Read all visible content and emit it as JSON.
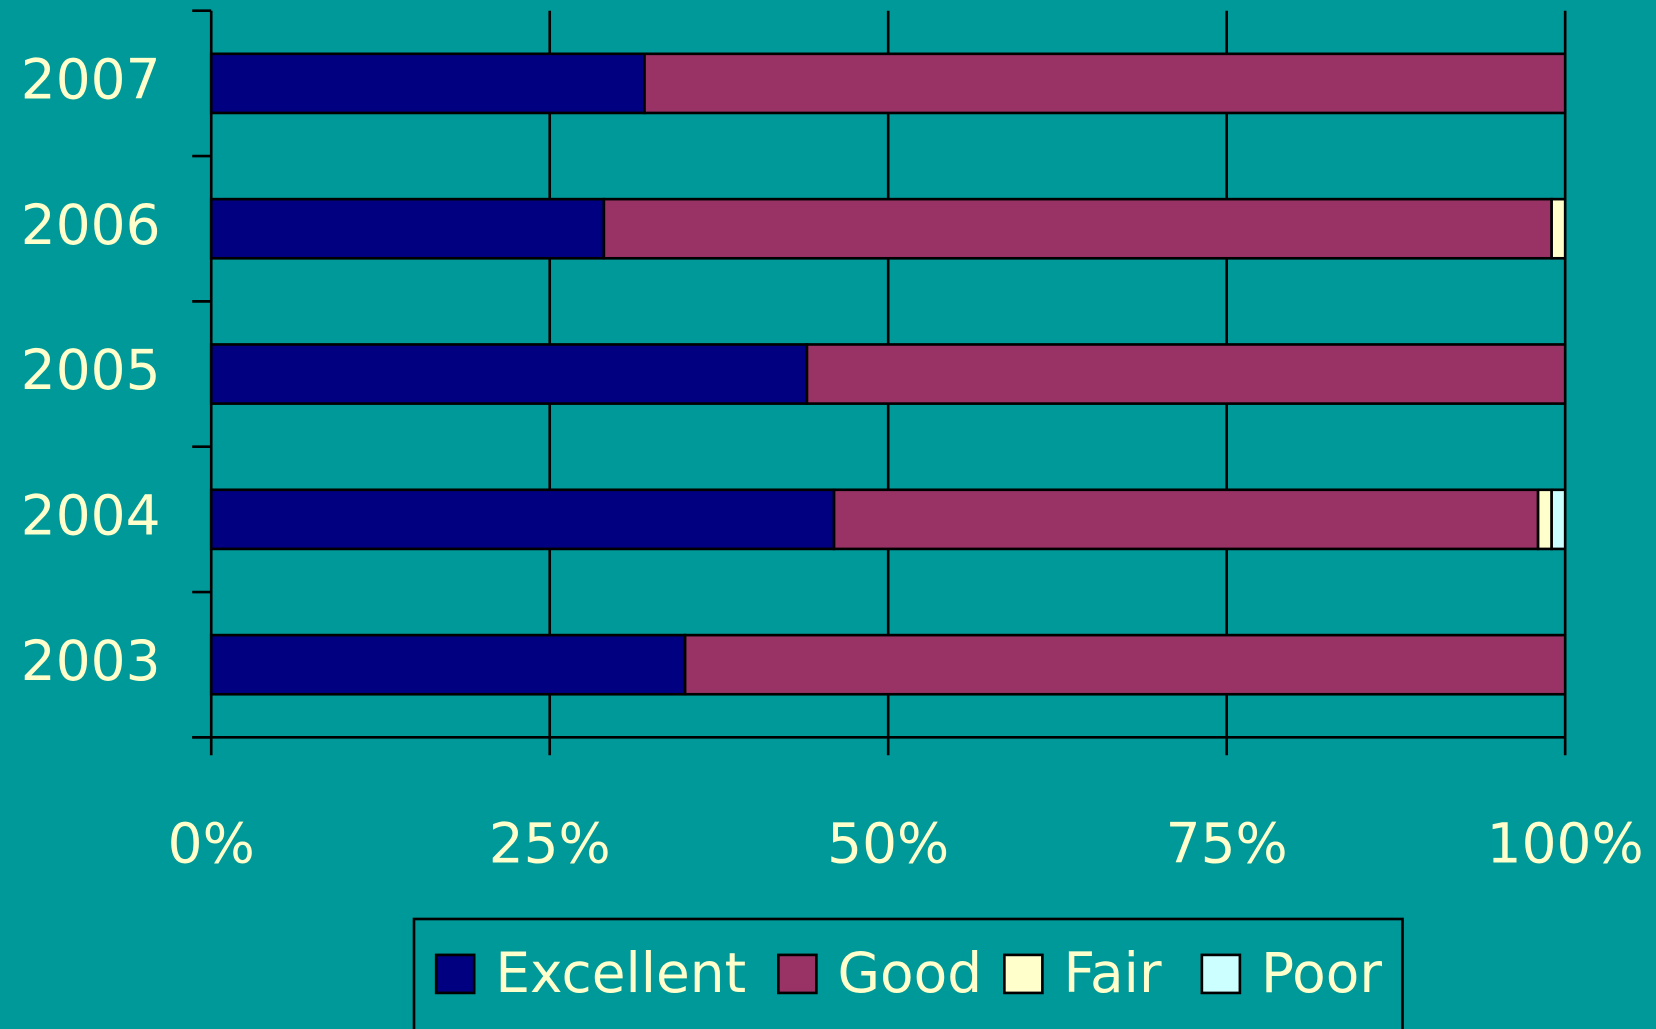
{
  "chart_data": {
    "type": "stacked-barh",
    "categories": [
      "2003",
      "2004",
      "2005",
      "2006",
      "2007"
    ],
    "series": [
      {
        "name": "Excellent",
        "color": "#000080",
        "values": [
          35,
          46,
          44,
          29,
          32
        ]
      },
      {
        "name": "Good",
        "color": "#993366",
        "values": [
          65,
          52,
          56,
          70,
          68
        ]
      },
      {
        "name": "Fair",
        "color": "#ffffcc",
        "values": [
          0,
          1,
          0,
          1,
          0
        ]
      },
      {
        "name": "Poor",
        "color": "#ccffff",
        "values": [
          0,
          1,
          0,
          0,
          0
        ]
      }
    ],
    "xlim": [
      0,
      100
    ],
    "xticks": [
      {
        "value": 0,
        "label": "0%"
      },
      {
        "value": 25,
        "label": "25%"
      },
      {
        "value": 50,
        "label": "50%"
      },
      {
        "value": 75,
        "label": "75%"
      },
      {
        "value": 100,
        "label": "100%"
      }
    ],
    "grid": true,
    "legend": "bottom"
  }
}
